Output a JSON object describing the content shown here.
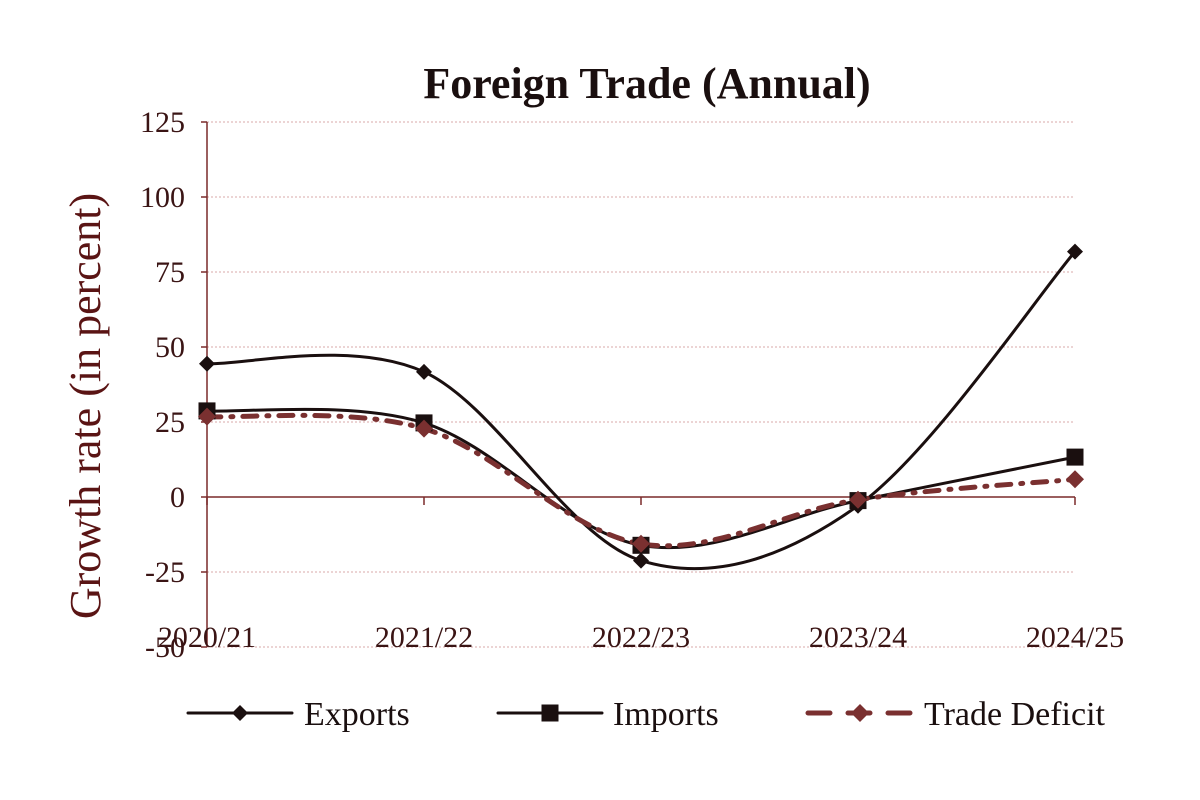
{
  "chart_data": {
    "type": "line",
    "title": "Foreign Trade (Annual)",
    "xlabel": "",
    "ylabel": "Growth rate (in percent)",
    "categories": [
      "2020/21",
      "2021/22",
      "2022/23",
      "2023/24",
      "2024/25"
    ],
    "ylim": [
      -50,
      125
    ],
    "yticks": [
      -50,
      -25,
      0,
      25,
      50,
      75,
      100,
      125
    ],
    "grid": true,
    "legend_position": "bottom",
    "series": [
      {
        "name": "Exports",
        "values": [
          44.4,
          41.7,
          -21.2,
          -2.9,
          81.8
        ],
        "color": "#1a0f0f",
        "line_style": "solid",
        "marker": "diamond"
      },
      {
        "name": "Imports",
        "values": [
          28.7,
          24.7,
          -16.1,
          -1.2,
          13.3
        ],
        "color": "#1a0f0f",
        "line_style": "solid",
        "marker": "square"
      },
      {
        "name": "Trade Deficit",
        "values": [
          26.8,
          22.8,
          -15.6,
          -0.9,
          5.9
        ],
        "color": "#7a3030",
        "line_style": "dashed",
        "marker": "diamond"
      }
    ]
  }
}
